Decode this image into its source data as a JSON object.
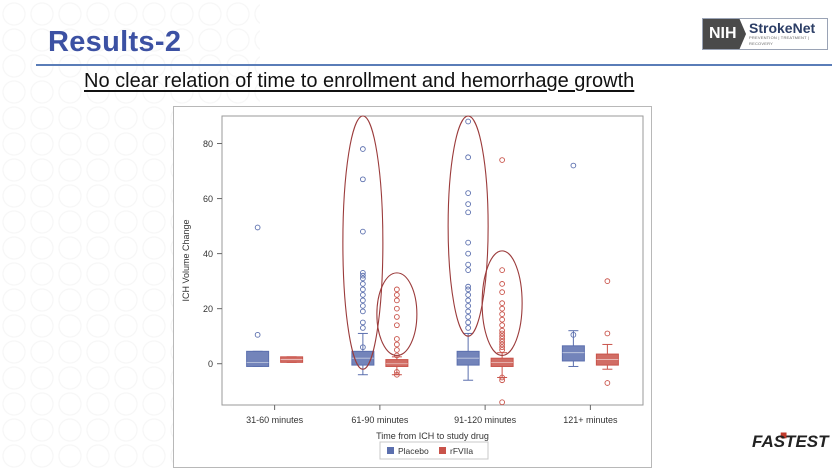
{
  "slide": {
    "title": "Results-2",
    "subtitle": "No clear relation of time to enrollment and hemorrhage growth",
    "logo_prefix": "NIH",
    "logo_name": "StrokeNet",
    "logo_tagline": "PREVENTION | TREATMENT | RECOVERY",
    "footer_logo": "FASTEST"
  },
  "colors": {
    "title": "#3c51a3",
    "placebo": "#5b6fae",
    "rfviia": "#c9534a",
    "highlight_ellipse": "#9b3b3b"
  },
  "chart_data": {
    "type": "box",
    "xlabel": "Time from ICH to study drug",
    "ylabel": "ICH Volume Change",
    "ylim": [
      -15,
      90
    ],
    "yticks": [
      0,
      20,
      40,
      60,
      80
    ],
    "categories": [
      "31-60 minutes",
      "61-90 minutes",
      "91-120 minutes",
      "121+ minutes"
    ],
    "legend_position": "bottom",
    "series": [
      {
        "name": "Placebo",
        "boxes": [
          {
            "whisker_low": -1,
            "q1": -1,
            "median": 0.5,
            "q3": 4.5,
            "whisker_high": 4.5,
            "outliers": [
              10.5,
              49.5
            ]
          },
          {
            "whisker_low": -4,
            "q1": -0.5,
            "median": 2,
            "q3": 4.5,
            "whisker_high": 11,
            "outliers": [
              6,
              13,
              15,
              19,
              21,
              23,
              25,
              27,
              29,
              31,
              32,
              33,
              48,
              67,
              78
            ]
          },
          {
            "whisker_low": -6,
            "q1": -0.5,
            "median": 2,
            "q3": 4.5,
            "whisker_high": 11,
            "outliers": [
              13,
              15,
              17,
              19,
              21,
              23,
              25,
              27,
              28,
              34,
              36,
              40,
              44,
              55,
              58,
              62,
              75,
              88
            ]
          },
          {
            "whisker_low": -1,
            "q1": 1,
            "median": 4,
            "q3": 6.5,
            "whisker_high": 12,
            "outliers": [
              10.5,
              72
            ]
          }
        ]
      },
      {
        "name": "rFVIIa",
        "boxes": [
          {
            "whisker_low": 0.5,
            "q1": 0.5,
            "median": 1.5,
            "q3": 2.5,
            "whisker_high": 2.5,
            "outliers": []
          },
          {
            "whisker_low": -4,
            "q1": -1,
            "median": 0,
            "q3": 1.5,
            "whisker_high": 2.5,
            "outliers": [
              -4,
              -3,
              3,
              5,
              7,
              9,
              14,
              17,
              20,
              23,
              25,
              27
            ]
          },
          {
            "whisker_low": -5,
            "q1": -1,
            "median": 0.5,
            "q3": 2,
            "whisker_high": 4,
            "outliers": [
              -14,
              -6,
              -5,
              5,
              6,
              7,
              8,
              9,
              10,
              11,
              12,
              14,
              16,
              18,
              20,
              22,
              26,
              29,
              34,
              74
            ]
          },
          {
            "whisker_low": -2,
            "q1": -0.5,
            "median": 1.5,
            "q3": 3.5,
            "whisker_high": 7,
            "outliers": [
              -7,
              11,
              30
            ]
          }
        ]
      }
    ],
    "annotations": [
      {
        "type": "ellipse",
        "category_index": 1,
        "series": "Placebo",
        "y_range": [
          -2,
          90
        ]
      },
      {
        "type": "ellipse",
        "category_index": 1,
        "series": "rFVIIa",
        "y_range": [
          3,
          33
        ]
      },
      {
        "type": "ellipse",
        "category_index": 2,
        "series": "Placebo",
        "y_range": [
          10,
          90
        ]
      },
      {
        "type": "ellipse",
        "category_index": 2,
        "series": "rFVIIa",
        "y_range": [
          3,
          41
        ]
      }
    ]
  }
}
